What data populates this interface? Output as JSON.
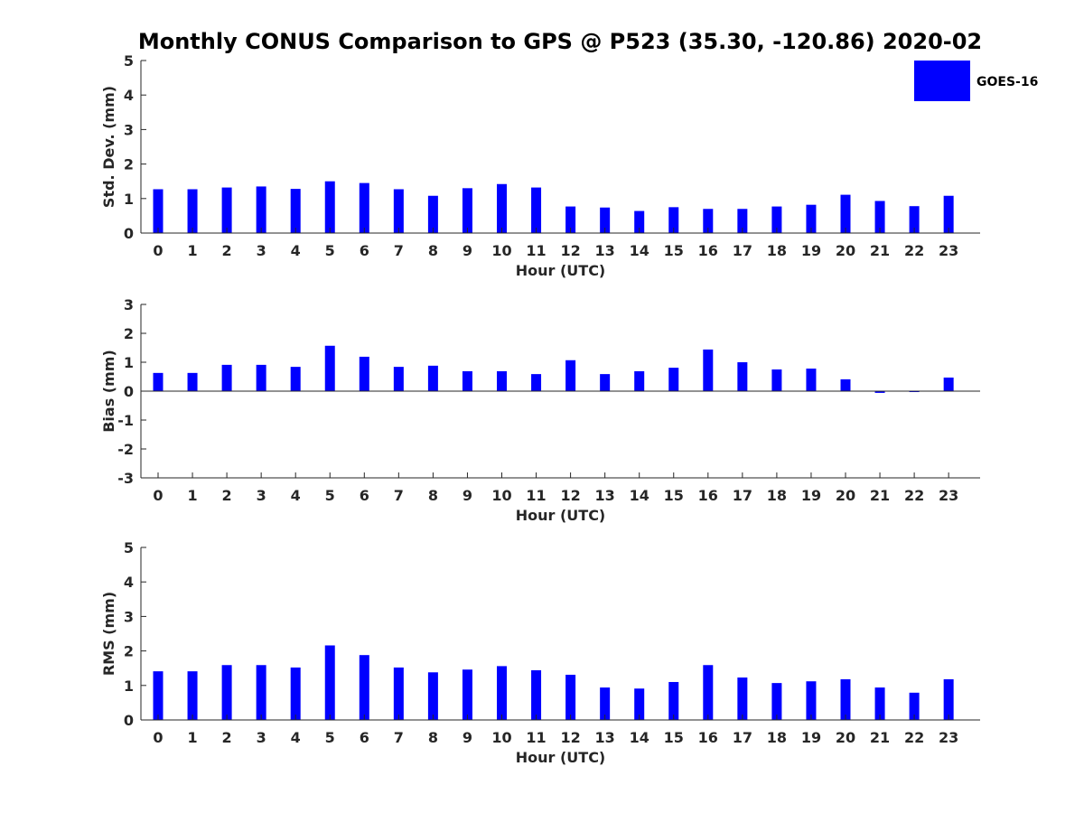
{
  "title": "Monthly CONUS Comparison to GPS @ P523 (35.30, -120.86) 2020-02",
  "legend": {
    "label": "GOES-16",
    "color": "#0000ff",
    "placement": "top-right"
  },
  "chart_data": [
    {
      "type": "bar",
      "xlabel": "Hour (UTC)",
      "ylabel": "Std. Dev. (mm)",
      "ylim": [
        0,
        5
      ],
      "yticks": [
        0,
        1,
        2,
        3,
        4,
        5
      ],
      "categories": [
        "0",
        "1",
        "2",
        "3",
        "4",
        "5",
        "6",
        "7",
        "8",
        "9",
        "10",
        "11",
        "12",
        "13",
        "14",
        "15",
        "16",
        "17",
        "18",
        "19",
        "20",
        "21",
        "22",
        "23"
      ],
      "series": [
        {
          "name": "GOES-16",
          "values": [
            1.27,
            1.27,
            1.32,
            1.35,
            1.28,
            1.5,
            1.45,
            1.27,
            1.08,
            1.3,
            1.42,
            1.32,
            0.77,
            0.74,
            0.64,
            0.75,
            0.7,
            0.7,
            0.77,
            0.82,
            1.11,
            0.93,
            0.78,
            1.08
          ]
        }
      ]
    },
    {
      "type": "bar",
      "xlabel": "Hour (UTC)",
      "ylabel": "Bias (mm)",
      "ylim": [
        -3,
        3
      ],
      "yticks": [
        -3,
        -2,
        -1,
        0,
        1,
        2,
        3
      ],
      "categories": [
        "0",
        "1",
        "2",
        "3",
        "4",
        "5",
        "6",
        "7",
        "8",
        "9",
        "10",
        "11",
        "12",
        "13",
        "14",
        "15",
        "16",
        "17",
        "18",
        "19",
        "20",
        "21",
        "22",
        "23"
      ],
      "series": [
        {
          "name": "GOES-16",
          "values": [
            0.63,
            0.63,
            0.91,
            0.91,
            0.84,
            1.57,
            1.19,
            0.84,
            0.88,
            0.69,
            0.69,
            0.59,
            1.07,
            0.59,
            0.69,
            0.81,
            1.44,
            1.0,
            0.75,
            0.78,
            0.41,
            -0.06,
            -0.01,
            0.47
          ]
        }
      ]
    },
    {
      "type": "bar",
      "xlabel": "Hour (UTC)",
      "ylabel": "RMS (mm)",
      "ylim": [
        0,
        5
      ],
      "yticks": [
        0,
        1,
        2,
        3,
        4,
        5
      ],
      "categories": [
        "0",
        "1",
        "2",
        "3",
        "4",
        "5",
        "6",
        "7",
        "8",
        "9",
        "10",
        "11",
        "12",
        "13",
        "14",
        "15",
        "16",
        "17",
        "18",
        "19",
        "20",
        "21",
        "22",
        "23"
      ],
      "series": [
        {
          "name": "GOES-16",
          "values": [
            1.41,
            1.41,
            1.59,
            1.59,
            1.52,
            2.16,
            1.88,
            1.52,
            1.38,
            1.46,
            1.56,
            1.44,
            1.31,
            0.94,
            0.91,
            1.1,
            1.59,
            1.23,
            1.07,
            1.12,
            1.18,
            0.94,
            0.79,
            1.18
          ]
        }
      ]
    }
  ]
}
